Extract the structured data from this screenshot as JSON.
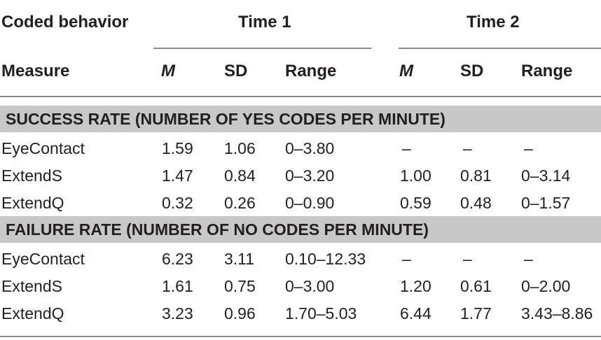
{
  "header": {
    "row1_label": "Coded behavior",
    "time1": "Time 1",
    "time2": "Time 2",
    "row2_label": "Measure",
    "m": "M",
    "sd": "SD",
    "range": "Range"
  },
  "sections": [
    {
      "title": "SUCCESS RATE (NUMBER OF YES CODES PER MINUTE)",
      "rows": [
        {
          "measure": "EyeContact",
          "t1_m": "1.59",
          "t1_sd": "1.06",
          "t1_range": "0–3.80",
          "t2_m": "–",
          "t2_sd": "–",
          "t2_range": "–"
        },
        {
          "measure": "ExtendS",
          "t1_m": "1.47",
          "t1_sd": "0.84",
          "t1_range": "0–3.20",
          "t2_m": "1.00",
          "t2_sd": "0.81",
          "t2_range": "0–3.14"
        },
        {
          "measure": "ExtendQ",
          "t1_m": "0.32",
          "t1_sd": "0.26",
          "t1_range": "0–0.90",
          "t2_m": "0.59",
          "t2_sd": "0.48",
          "t2_range": "0–1.57"
        }
      ]
    },
    {
      "title": "FAILURE RATE (NUMBER OF NO CODES PER MINUTE)",
      "rows": [
        {
          "measure": "EyeContact",
          "t1_m": "6.23",
          "t1_sd": "3.11",
          "t1_range": "0.10–12.33",
          "t2_m": "–",
          "t2_sd": "–",
          "t2_range": "–"
        },
        {
          "measure": "ExtendS",
          "t1_m": "1.61",
          "t1_sd": "0.75",
          "t1_range": "0–3.00",
          "t2_m": "1.20",
          "t2_sd": "0.61",
          "t2_range": "0–2.00"
        },
        {
          "measure": "ExtendQ",
          "t1_m": "3.23",
          "t1_sd": "0.96",
          "t1_range": "1.70–5.03",
          "t2_m": "6.44",
          "t2_sd": "1.77",
          "t2_range": "3.43–8.86"
        }
      ]
    }
  ]
}
